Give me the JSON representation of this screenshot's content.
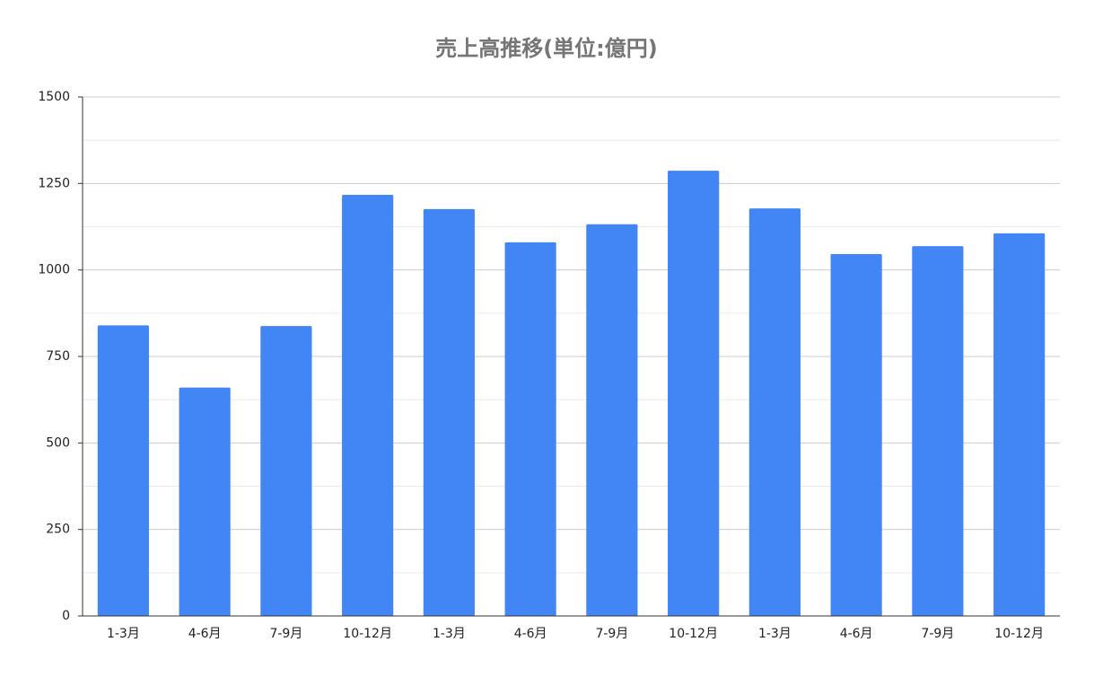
{
  "chart_data": {
    "type": "bar",
    "title": "売上高推移(単位:億円)",
    "categories": [
      "1-3月",
      "4-6月",
      "7-9月",
      "10-12月",
      "1-3月",
      "4-6月",
      "7-9月",
      "10-12月",
      "1-3月",
      "4-6月",
      "7-9月",
      "10-12月"
    ],
    "values": [
      840,
      660,
      838,
      1217,
      1176,
      1080,
      1132,
      1287,
      1178,
      1046,
      1069,
      1106
    ],
    "color": "#4285f4",
    "ylim": [
      0,
      1500
    ],
    "yticks": [
      0,
      250,
      500,
      750,
      1000,
      1250,
      1500
    ],
    "grid": true,
    "minor_grid": true
  }
}
